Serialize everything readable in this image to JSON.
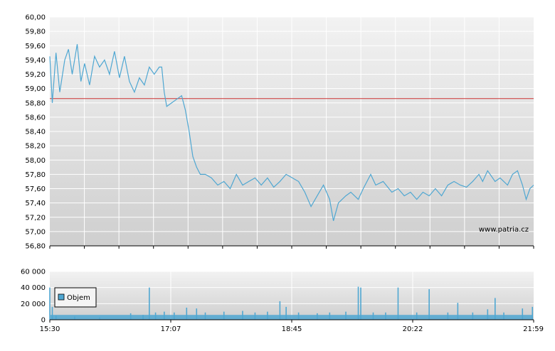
{
  "watermark": "www.patria.cz",
  "colors": {
    "price_line": "#4fa7d2",
    "reference_line": "#cc3333",
    "volume_bar": "#4fa7d2",
    "plot_bg_top": "#f2f2f2",
    "plot_bg_bottom": "#cfcfcf",
    "grid": "#ffffff"
  },
  "chart_data": [
    {
      "type": "line",
      "name": "price",
      "ylim": [
        56.8,
        60.0
      ],
      "y_ticks": [
        "60,00",
        "59,80",
        "59,60",
        "59,40",
        "59,20",
        "59,00",
        "58,80",
        "58,60",
        "58,40",
        "58,20",
        "58,00",
        "57,80",
        "57,60",
        "57,40",
        "57,20",
        "57,00",
        "56,80"
      ],
      "reference_value": 58.86,
      "grid": true,
      "x_time_range": [
        "15:30",
        "21:59"
      ],
      "series": [
        {
          "points": [
            [
              "15:30",
              59.45
            ],
            [
              "15:32",
              58.8
            ],
            [
              "15:35",
              59.5
            ],
            [
              "15:38",
              58.95
            ],
            [
              "15:42",
              59.4
            ],
            [
              "15:45",
              59.55
            ],
            [
              "15:48",
              59.2
            ],
            [
              "15:52",
              59.62
            ],
            [
              "15:55",
              59.1
            ],
            [
              "15:58",
              59.35
            ],
            [
              "16:02",
              59.05
            ],
            [
              "16:06",
              59.45
            ],
            [
              "16:10",
              59.3
            ],
            [
              "16:14",
              59.4
            ],
            [
              "16:18",
              59.2
            ],
            [
              "16:22",
              59.52
            ],
            [
              "16:26",
              59.15
            ],
            [
              "16:30",
              59.45
            ],
            [
              "16:34",
              59.1
            ],
            [
              "16:38",
              58.95
            ],
            [
              "16:42",
              59.15
            ],
            [
              "16:46",
              59.05
            ],
            [
              "16:50",
              59.3
            ],
            [
              "16:54",
              59.2
            ],
            [
              "16:58",
              59.3
            ],
            [
              "17:00",
              59.3
            ],
            [
              "17:02",
              58.95
            ],
            [
              "17:04",
              58.75
            ],
            [
              "17:08",
              58.8
            ],
            [
              "17:12",
              58.85
            ],
            [
              "17:16",
              58.9
            ],
            [
              "17:19",
              58.7
            ],
            [
              "17:22",
              58.4
            ],
            [
              "17:25",
              58.05
            ],
            [
              "17:28",
              57.9
            ],
            [
              "17:31",
              57.8
            ],
            [
              "17:35",
              57.8
            ],
            [
              "17:40",
              57.75
            ],
            [
              "17:45",
              57.65
            ],
            [
              "17:50",
              57.7
            ],
            [
              "17:55",
              57.6
            ],
            [
              "18:00",
              57.8
            ],
            [
              "18:05",
              57.65
            ],
            [
              "18:10",
              57.7
            ],
            [
              "18:15",
              57.75
            ],
            [
              "18:20",
              57.65
            ],
            [
              "18:25",
              57.75
            ],
            [
              "18:30",
              57.62
            ],
            [
              "18:35",
              57.7
            ],
            [
              "18:40",
              57.8
            ],
            [
              "18:45",
              57.75
            ],
            [
              "18:50",
              57.7
            ],
            [
              "18:55",
              57.55
            ],
            [
              "19:00",
              57.35
            ],
            [
              "19:05",
              57.5
            ],
            [
              "19:10",
              57.65
            ],
            [
              "19:15",
              57.45
            ],
            [
              "19:18",
              57.15
            ],
            [
              "19:22",
              57.4
            ],
            [
              "19:28",
              57.5
            ],
            [
              "19:32",
              57.55
            ],
            [
              "19:38",
              57.45
            ],
            [
              "19:42",
              57.6
            ],
            [
              "19:48",
              57.8
            ],
            [
              "19:52",
              57.65
            ],
            [
              "19:58",
              57.7
            ],
            [
              "20:05",
              57.55
            ],
            [
              "20:10",
              57.6
            ],
            [
              "20:15",
              57.5
            ],
            [
              "20:20",
              57.55
            ],
            [
              "20:25",
              57.45
            ],
            [
              "20:30",
              57.55
            ],
            [
              "20:35",
              57.5
            ],
            [
              "20:40",
              57.6
            ],
            [
              "20:45",
              57.5
            ],
            [
              "20:50",
              57.65
            ],
            [
              "20:55",
              57.7
            ],
            [
              "21:00",
              57.65
            ],
            [
              "21:05",
              57.62
            ],
            [
              "21:10",
              57.7
            ],
            [
              "21:15",
              57.8
            ],
            [
              "21:18",
              57.7
            ],
            [
              "21:22",
              57.85
            ],
            [
              "21:28",
              57.7
            ],
            [
              "21:32",
              57.75
            ],
            [
              "21:38",
              57.65
            ],
            [
              "21:42",
              57.8
            ],
            [
              "21:46",
              57.85
            ],
            [
              "21:50",
              57.65
            ],
            [
              "21:53",
              57.45
            ],
            [
              "21:56",
              57.6
            ],
            [
              "21:59",
              57.65
            ]
          ]
        }
      ]
    },
    {
      "type": "bar",
      "name": "volume",
      "ylim": [
        0,
        60000
      ],
      "y_ticks": [
        "60 000",
        "40 000",
        "20 000",
        "0"
      ],
      "x_ticks": [
        "15:30",
        "17:07",
        "18:45",
        "20:22",
        "21:59"
      ],
      "legend": {
        "label": "Objem",
        "position": "top-left"
      },
      "grid": true,
      "series": [
        {
          "points": [
            [
              "15:30",
              40000
            ],
            [
              "15:32",
              16000
            ],
            [
              "15:35",
              5000
            ],
            [
              "15:50",
              4000
            ],
            [
              "16:10",
              3000
            ],
            [
              "16:35",
              8000
            ],
            [
              "16:45",
              6000
            ],
            [
              "16:50",
              40000
            ],
            [
              "16:55",
              9000
            ],
            [
              "17:02",
              10000
            ],
            [
              "17:10",
              9000
            ],
            [
              "17:20",
              15000
            ],
            [
              "17:28",
              14000
            ],
            [
              "17:35",
              9000
            ],
            [
              "17:50",
              10000
            ],
            [
              "18:05",
              11000
            ],
            [
              "18:15",
              9000
            ],
            [
              "18:25",
              10000
            ],
            [
              "18:35",
              23000
            ],
            [
              "18:40",
              16000
            ],
            [
              "18:50",
              9000
            ],
            [
              "19:05",
              8000
            ],
            [
              "19:15",
              9000
            ],
            [
              "19:28",
              10000
            ],
            [
              "19:38",
              41000
            ],
            [
              "19:40",
              40000
            ],
            [
              "19:50",
              9000
            ],
            [
              "20:00",
              9000
            ],
            [
              "20:10",
              40000
            ],
            [
              "20:25",
              9000
            ],
            [
              "20:35",
              38000
            ],
            [
              "20:50",
              9000
            ],
            [
              "20:58",
              21000
            ],
            [
              "21:10",
              9000
            ],
            [
              "21:22",
              13000
            ],
            [
              "21:28",
              27000
            ],
            [
              "21:35",
              9000
            ],
            [
              "21:50",
              14000
            ],
            [
              "21:58",
              16000
            ]
          ],
          "baseline": 6000
        }
      ]
    }
  ]
}
